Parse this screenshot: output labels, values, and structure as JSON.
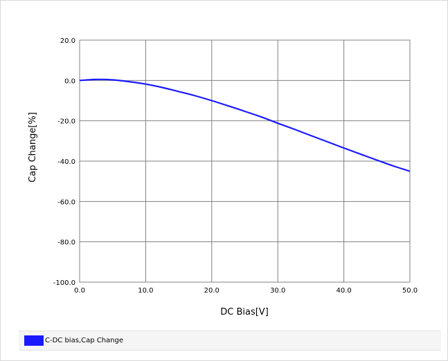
{
  "chart_data": {
    "type": "line",
    "xlabel": "DC Bias[V]",
    "ylabel": "Cap Change[%]",
    "xlim": [
      0,
      50
    ],
    "ylim": [
      -100,
      20
    ],
    "x_ticks": [
      "0.0",
      "10.0",
      "20.0",
      "30.0",
      "40.0",
      "50.0"
    ],
    "y_ticks": [
      "20.0",
      "0.0",
      "-20.0",
      "-40.0",
      "-60.0",
      "-80.0",
      "-100.0"
    ],
    "x_tick_values": [
      0,
      10,
      20,
      30,
      40,
      50
    ],
    "y_tick_values": [
      20,
      0,
      -20,
      -40,
      -60,
      -80,
      -100
    ],
    "grid": true,
    "legend_position": "bottom",
    "series": [
      {
        "name": "C-DC bias,Cap Change",
        "color": "#1a1aff",
        "x": [
          0,
          2.5,
          5,
          7.5,
          10,
          12.5,
          15,
          17.5,
          20,
          22.5,
          25,
          27.5,
          30,
          32.5,
          35,
          37.5,
          40,
          42.5,
          45,
          47.5,
          50
        ],
        "y": [
          0.0,
          0.5,
          0.3,
          -0.6,
          -1.8,
          -3.5,
          -5.5,
          -7.6,
          -10.0,
          -12.6,
          -15.3,
          -18.1,
          -21.2,
          -24.2,
          -27.3,
          -30.4,
          -33.5,
          -36.5,
          -39.5,
          -42.4,
          -45.0
        ]
      }
    ]
  }
}
